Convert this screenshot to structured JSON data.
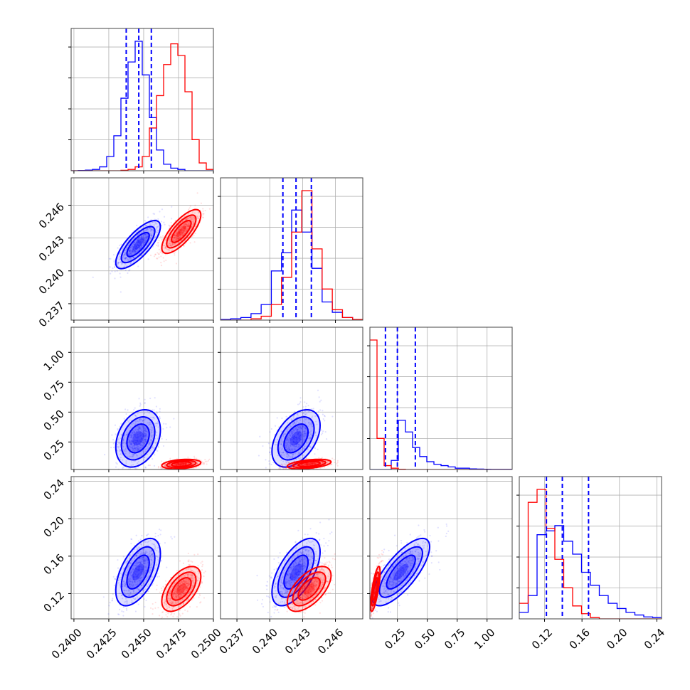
{
  "chart_data": {
    "type": "scatter",
    "subtype": "corner-plot",
    "title": "",
    "parameters": [
      "",
      "",
      "",
      ""
    ],
    "colors": {
      "blue": "#0000ff",
      "red": "#ff0000",
      "grid": "#b0b0b0"
    },
    "grid": true,
    "ranges": [
      [
        0.2398,
        0.25
      ],
      [
        0.2355,
        0.2485
      ],
      [
        0.02,
        1.21
      ],
      [
        0.093,
        0.245
      ]
    ],
    "ticks": [
      {
        "values": [
          0.24,
          0.2425,
          0.245,
          0.2475,
          0.25
        ],
        "labels": [
          "0.2400",
          "0.2425",
          "0.2450",
          "0.2475",
          "0.2500"
        ]
      },
      {
        "values": [
          0.237,
          0.24,
          0.243,
          0.246
        ],
        "labels": [
          "0.237",
          "0.240",
          "0.243",
          "0.246"
        ]
      },
      {
        "values": [
          0.25,
          0.5,
          0.75,
          1.0
        ],
        "labels": [
          "0.25",
          "0.50",
          "0.75",
          "1.00"
        ]
      },
      {
        "values": [
          0.12,
          0.16,
          0.2,
          0.24
        ],
        "labels": [
          "0.12",
          "0.16",
          "0.20",
          "0.24"
        ]
      }
    ],
    "quantiles_blue": [
      [
        0.24375,
        0.24465,
        0.24555
      ],
      [
        0.2412,
        0.2424,
        0.2438
      ],
      [
        0.15,
        0.25,
        0.4
      ],
      [
        0.122,
        0.139,
        0.167
      ]
    ],
    "series": [
      {
        "color": "blue",
        "means": [
          0.2446,
          0.2424,
          0.28,
          0.143
        ],
        "sds": [
          0.0008,
          0.0011,
          0.12,
          0.018
        ],
        "histograms": [
          [
            0,
            0.2,
            0.5,
            1,
            3,
            11,
            27,
            56,
            84,
            100,
            74,
            41,
            16,
            5,
            2,
            1,
            0,
            0,
            0,
            0
          ],
          [
            0.5,
            1,
            2,
            5,
            12,
            38,
            52,
            85,
            68,
            40,
            14,
            6,
            2,
            0.5
          ],
          [
            0,
            0,
            0,
            7,
            38,
            29,
            17,
            10,
            6,
            4,
            3,
            2,
            1,
            1,
            0.5,
            0.3,
            0.2,
            0.1,
            0.1,
            0.1
          ],
          [
            5,
            18,
            65,
            68,
            72,
            60,
            50,
            36,
            26,
            18,
            12,
            8,
            5,
            3,
            1.5,
            1
          ]
        ]
      },
      {
        "color": "red",
        "means": [
          0.2477,
          0.2436,
          0.065,
          0.125
        ],
        "sds": [
          0.0007,
          0.001,
          0.02,
          0.012
        ],
        "histograms": [
          [
            0,
            0,
            0,
            0,
            0,
            0,
            0,
            0.3,
            1,
            3,
            11,
            33,
            58,
            82,
            98,
            89,
            61,
            24,
            6,
            1
          ],
          [
            0,
            0,
            0,
            1,
            3,
            12,
            33,
            68,
            100,
            55,
            24,
            8,
            2,
            0.5
          ],
          [
            100,
            24,
            3,
            1,
            0.2,
            0,
            0,
            0,
            0,
            0,
            0,
            0,
            0,
            0,
            0,
            0,
            0,
            0,
            0,
            0
          ],
          [
            12,
            90,
            100,
            70,
            46,
            24,
            10,
            4,
            1,
            0,
            0,
            0,
            0,
            0,
            0,
            0
          ]
        ]
      }
    ],
    "correlations": {
      "1-0": 0.75,
      "2-0": 0.3,
      "2-1": 0.45,
      "3-0": 0.55,
      "3-1": 0.6,
      "3-2": 0.75
    }
  }
}
